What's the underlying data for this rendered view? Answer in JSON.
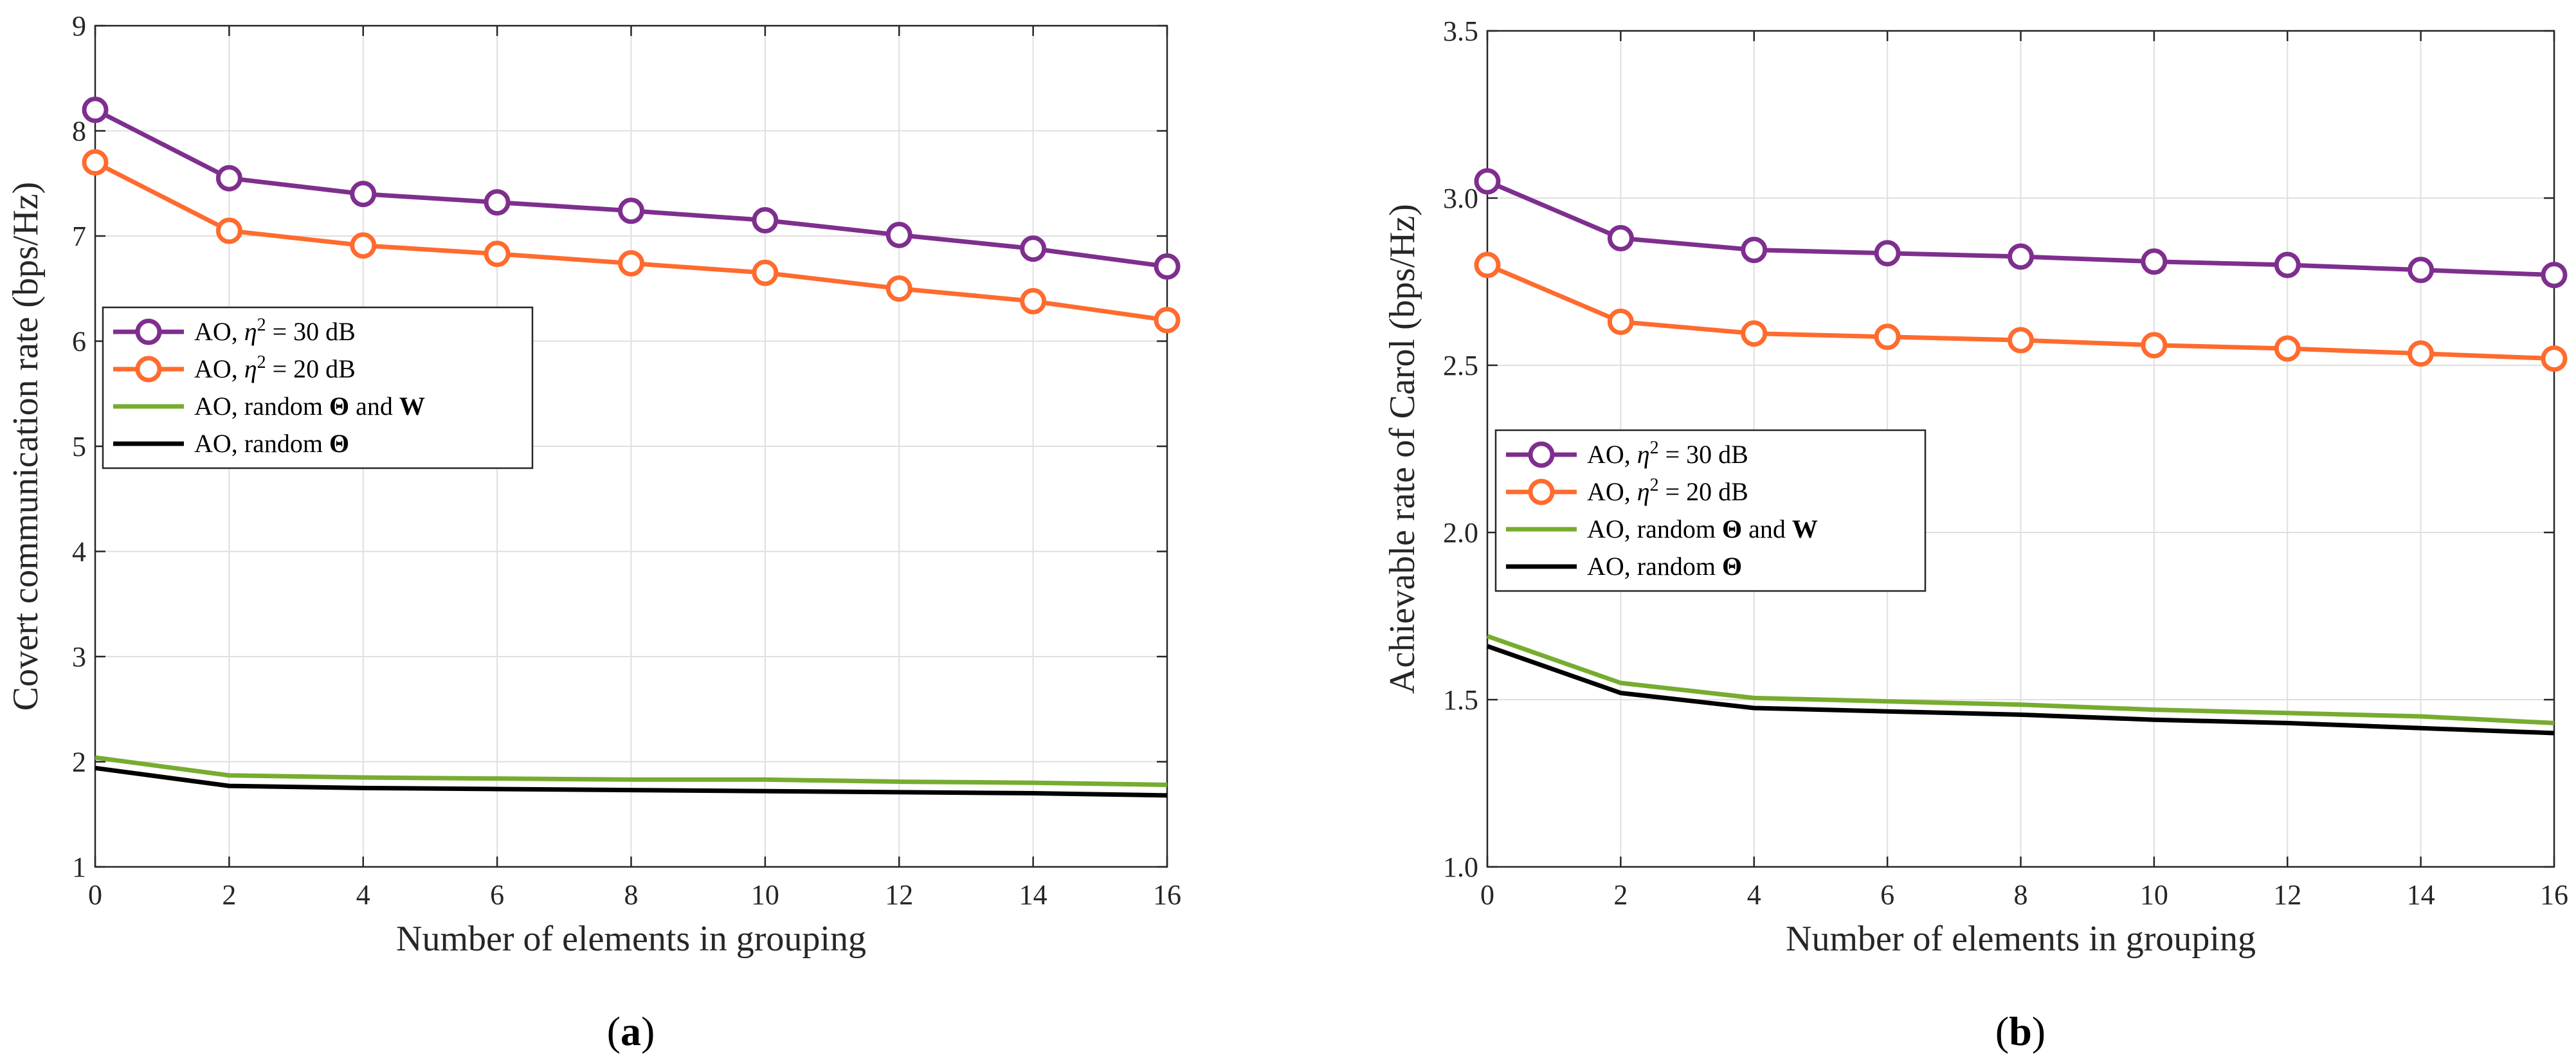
{
  "chart_data": [
    {
      "type": "line",
      "panel_label": "(a)",
      "xlabel": "Number of elements in grouping",
      "ylabel": "Covert communication rate (bps/Hz)",
      "x": [
        0,
        2,
        4,
        6,
        8,
        10,
        12,
        14,
        16
      ],
      "xlim": [
        0,
        16
      ],
      "ylim": [
        1,
        9
      ],
      "xticks": [
        "0",
        "2",
        "4",
        "6",
        "8",
        "10",
        "12",
        "14",
        "16"
      ],
      "yticks": [
        "1",
        "2",
        "3",
        "4",
        "5",
        "6",
        "7",
        "8",
        "9"
      ],
      "grid": true,
      "legend_placement": "center-left",
      "series": [
        {
          "name": "AO, η² = 30 dB",
          "color": "#7e2f8e",
          "marker": "circle",
          "values": [
            8.2,
            7.55,
            7.4,
            7.32,
            7.24,
            7.15,
            7.01,
            6.88,
            6.71
          ]
        },
        {
          "name": "AO, η² = 20 dB",
          "color": "#ff6b2e",
          "marker": "circle",
          "values": [
            7.7,
            7.05,
            6.91,
            6.83,
            6.74,
            6.65,
            6.5,
            6.38,
            6.2
          ]
        },
        {
          "name": "AO, random Θ and W",
          "color": "#77ac30",
          "marker": "none",
          "values": [
            2.04,
            1.87,
            1.85,
            1.84,
            1.83,
            1.83,
            1.81,
            1.8,
            1.78
          ]
        },
        {
          "name": "AO, random Θ",
          "color": "#000000",
          "marker": "none",
          "values": [
            1.94,
            1.77,
            1.75,
            1.74,
            1.73,
            1.72,
            1.71,
            1.7,
            1.68
          ]
        }
      ]
    },
    {
      "type": "line",
      "panel_label": "(b)",
      "xlabel": "Number of elements in grouping",
      "ylabel": "Achievable rate of Carol (bps/Hz)",
      "x": [
        0,
        2,
        4,
        6,
        8,
        10,
        12,
        14,
        16
      ],
      "xlim": [
        0,
        16
      ],
      "ylim": [
        1.0,
        3.5
      ],
      "xticks": [
        "0",
        "2",
        "4",
        "6",
        "8",
        "10",
        "12",
        "14",
        "16"
      ],
      "yticks": [
        "1.0",
        "1.5",
        "2.0",
        "2.5",
        "3.0",
        "3.5"
      ],
      "grid": true,
      "legend_placement": "center-left",
      "series": [
        {
          "name": "AO, η² = 30 dB",
          "color": "#7e2f8e",
          "marker": "circle",
          "values": [
            3.05,
            2.88,
            2.845,
            2.835,
            2.825,
            2.81,
            2.8,
            2.785,
            2.77
          ]
        },
        {
          "name": "AO, η² = 20 dB",
          "color": "#ff6b2e",
          "marker": "circle",
          "values": [
            2.8,
            2.63,
            2.595,
            2.585,
            2.575,
            2.56,
            2.55,
            2.535,
            2.52
          ]
        },
        {
          "name": "AO, random Θ and W",
          "color": "#77ac30",
          "marker": "none",
          "values": [
            1.69,
            1.55,
            1.505,
            1.495,
            1.485,
            1.47,
            1.46,
            1.45,
            1.43
          ]
        },
        {
          "name": "AO, random Θ",
          "color": "#000000",
          "marker": "none",
          "values": [
            1.66,
            1.52,
            1.475,
            1.465,
            1.455,
            1.44,
            1.43,
            1.415,
            1.4
          ]
        }
      ]
    }
  ]
}
